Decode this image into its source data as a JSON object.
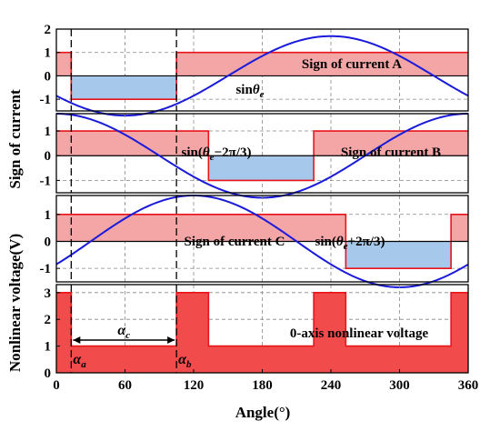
{
  "chart_data": {
    "type": "line",
    "xlabel": "Angle(°)",
    "xlim": [
      0,
      360
    ],
    "x_ticks": [
      "0",
      "60",
      "120",
      "180",
      "240",
      "300",
      "360"
    ],
    "ylabel_top": "Sign of current",
    "ylabel_bottom": "Nonlinear voltage(V)",
    "markers": [
      {
        "x": 13,
        "label": "α",
        "sub": "a"
      },
      {
        "x": 105,
        "label": "α",
        "sub": "b"
      }
    ],
    "span_label": {
      "label": "α",
      "sub": "c",
      "from": 13,
      "to": 105
    },
    "colors": {
      "sine": "#1a1adb",
      "sign_fill": "#f4a6a6",
      "sign_edge": "#e8141a",
      "neg_fill": "#a6c8ea",
      "voltage_fill": "#f24b4b"
    },
    "panels": [
      {
        "id": "a",
        "ylim": [
          -1.5,
          2
        ],
        "y_ticks": [
          "-1",
          "0",
          "1",
          "2"
        ],
        "sine_phase_deg": 0,
        "sign_label": "Sign of current A",
        "sine_label": {
          "pre": "sin",
          "theta": "θ",
          "sub": "e",
          "post": ""
        },
        "sign_steps": [
          [
            0,
            1
          ],
          [
            13,
            -1
          ],
          [
            105,
            1
          ],
          [
            360,
            1
          ]
        ]
      },
      {
        "id": "b",
        "ylim": [
          -1.5,
          1.7
        ],
        "y_ticks": [
          "-1",
          "0",
          "1"
        ],
        "sine_phase_deg": -120,
        "sign_label": "Sign of current B",
        "sine_label": {
          "pre": "sin(",
          "theta": "θ",
          "sub": "e",
          "post": "−2π/3)"
        },
        "sign_steps": [
          [
            0,
            1
          ],
          [
            133,
            -1
          ],
          [
            225,
            1
          ],
          [
            360,
            1
          ]
        ]
      },
      {
        "id": "c",
        "ylim": [
          -1.5,
          1.7
        ],
        "y_ticks": [
          "-1",
          "0",
          "1"
        ],
        "sine_phase_deg": 120,
        "sign_label": "Sign of current C",
        "sine_label": {
          "pre": "sin(",
          "theta": "θ",
          "sub": "e",
          "post": "+2π/3)"
        },
        "sign_steps": [
          [
            0,
            1
          ],
          [
            253,
            -1
          ],
          [
            345,
            1
          ],
          [
            360,
            1
          ]
        ]
      },
      {
        "id": "voltage",
        "ylim": [
          0,
          3.3
        ],
        "y_ticks": [
          "0",
          "1",
          "2",
          "3"
        ],
        "label": "0-axis nonlinear voltage",
        "steps": [
          [
            0,
            3
          ],
          [
            13,
            1
          ],
          [
            105,
            3
          ],
          [
            133,
            1
          ],
          [
            225,
            3
          ],
          [
            253,
            1
          ],
          [
            345,
            3
          ],
          [
            360,
            3
          ]
        ]
      }
    ]
  }
}
